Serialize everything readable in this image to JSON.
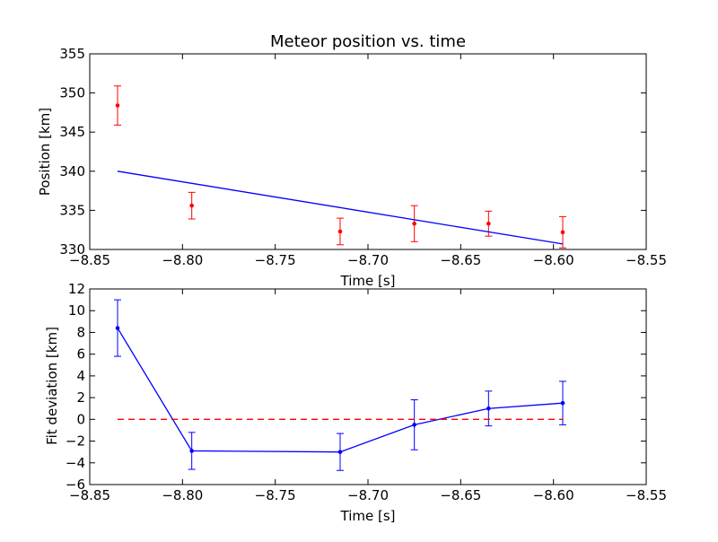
{
  "colors": {
    "background": "#ffffff",
    "axes": "#000000",
    "measured": "#ff0000",
    "fit": "#0000ff",
    "deviation": "#0000ff",
    "zero_line": "#ff0000"
  },
  "chart_data": [
    {
      "type": "scatter",
      "title": "Meteor position vs. time",
      "xlabel": "Time [s]",
      "ylabel": "Position [km]",
      "xlim": [
        -8.85,
        -8.55
      ],
      "ylim": [
        330,
        355
      ],
      "xticks": [
        -8.85,
        -8.8,
        -8.75,
        -8.7,
        -8.65,
        -8.6,
        -8.55
      ],
      "xtick_labels": [
        "−8.85",
        "−8.80",
        "−8.75",
        "−8.70",
        "−8.65",
        "−8.60",
        "−8.55"
      ],
      "yticks": [
        330,
        335,
        340,
        345,
        350,
        355
      ],
      "ytick_labels": [
        "330",
        "335",
        "340",
        "345",
        "350",
        "355"
      ],
      "grid": false,
      "series": [
        {
          "style": "points-with-errorbars",
          "color": "#ff0000",
          "x": [
            -8.835,
            -8.795,
            -8.715,
            -8.675,
            -8.635,
            -8.595
          ],
          "y": [
            348.4,
            335.6,
            332.3,
            333.3,
            333.3,
            332.2
          ],
          "yerr": [
            2.5,
            1.7,
            1.7,
            2.3,
            1.6,
            2.0
          ]
        },
        {
          "style": "line",
          "color": "#0000ff",
          "x": [
            -8.835,
            -8.595
          ],
          "y": [
            340.0,
            330.7
          ]
        }
      ]
    },
    {
      "type": "line",
      "title": "",
      "xlabel": "Time [s]",
      "ylabel": "Fit deviation [km]",
      "xlim": [
        -8.85,
        -8.55
      ],
      "ylim": [
        -6,
        12
      ],
      "xticks": [
        -8.85,
        -8.8,
        -8.75,
        -8.7,
        -8.65,
        -8.6,
        -8.55
      ],
      "xtick_labels": [
        "−8.85",
        "−8.80",
        "−8.75",
        "−8.70",
        "−8.65",
        "−8.60",
        "−8.55"
      ],
      "yticks": [
        -6,
        -4,
        -2,
        0,
        2,
        4,
        6,
        8,
        10,
        12
      ],
      "ytick_labels": [
        "−6",
        "−4",
        "−2",
        "0",
        "2",
        "4",
        "6",
        "8",
        "10",
        "12"
      ],
      "grid": false,
      "series": [
        {
          "style": "line-points-with-errorbars",
          "color": "#0000ff",
          "x": [
            -8.835,
            -8.795,
            -8.715,
            -8.675,
            -8.635,
            -8.595
          ],
          "y": [
            8.4,
            -2.9,
            -3.0,
            -0.5,
            1.0,
            1.5
          ],
          "yerr": [
            2.6,
            1.7,
            1.7,
            2.3,
            1.6,
            2.0
          ]
        },
        {
          "style": "dashed-line",
          "color": "#ff0000",
          "x": [
            -8.835,
            -8.595
          ],
          "y": [
            0,
            0
          ]
        }
      ]
    }
  ]
}
